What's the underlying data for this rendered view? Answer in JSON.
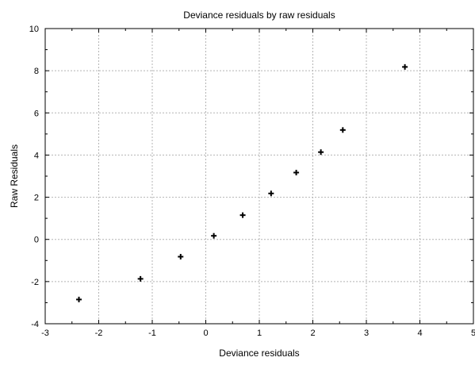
{
  "chart_data": {
    "type": "scatter",
    "title": "Deviance residuals by raw residuals",
    "xlabel": "Deviance residuals",
    "ylabel": "Raw Residuals",
    "xlim": [
      -3,
      5
    ],
    "ylim": [
      -4,
      10
    ],
    "xticks": [
      -3,
      -2,
      -1,
      0,
      1,
      2,
      3,
      4,
      5
    ],
    "yticks": [
      -4,
      -2,
      0,
      2,
      4,
      6,
      8,
      10
    ],
    "grid": true,
    "marker": "plus",
    "points": [
      {
        "x": -2.37,
        "y": -2.85
      },
      {
        "x": -1.22,
        "y": -1.87
      },
      {
        "x": -0.47,
        "y": -0.82
      },
      {
        "x": 0.15,
        "y": 0.17
      },
      {
        "x": 0.69,
        "y": 1.15
      },
      {
        "x": 1.22,
        "y": 2.18
      },
      {
        "x": 1.69,
        "y": 3.17
      },
      {
        "x": 2.15,
        "y": 4.14
      },
      {
        "x": 2.56,
        "y": 5.19
      },
      {
        "x": 3.72,
        "y": 8.18
      }
    ]
  }
}
